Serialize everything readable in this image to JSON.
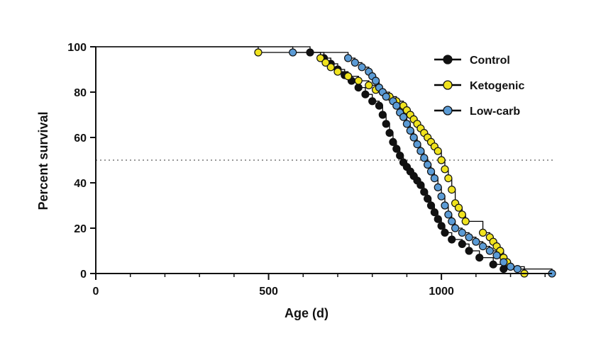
{
  "chart_data": {
    "type": "line",
    "subtype": "kaplan-meier-survival",
    "title": "",
    "xlabel": "Age (d)",
    "ylabel": "Percent survival",
    "xlim": [
      0,
      1320
    ],
    "ylim": [
      0,
      100
    ],
    "x_ticks": [
      0,
      500,
      1000
    ],
    "y_ticks": [
      0,
      20,
      40,
      60,
      80,
      100
    ],
    "x_minor_step": 100,
    "reference_line": {
      "y": 50,
      "style": "dotted",
      "color": "#999999"
    },
    "grid": false,
    "legend_position": "top-right",
    "series": [
      {
        "name": "Control",
        "color": "#000000",
        "marker_fill": "#111111",
        "steps": [
          [
            0,
            100
          ],
          [
            620,
            97.5
          ],
          [
            660,
            95
          ],
          [
            680,
            92.5
          ],
          [
            700,
            90
          ],
          [
            720,
            87.5
          ],
          [
            740,
            85
          ],
          [
            760,
            82
          ],
          [
            780,
            79
          ],
          [
            800,
            76
          ],
          [
            820,
            74
          ],
          [
            830,
            70
          ],
          [
            840,
            66
          ],
          [
            850,
            62
          ],
          [
            860,
            58
          ],
          [
            870,
            55
          ],
          [
            880,
            52
          ],
          [
            890,
            49
          ],
          [
            900,
            47
          ],
          [
            910,
            45
          ],
          [
            920,
            43
          ],
          [
            930,
            41
          ],
          [
            940,
            39
          ],
          [
            950,
            36
          ],
          [
            960,
            33
          ],
          [
            970,
            30
          ],
          [
            980,
            27
          ],
          [
            990,
            24
          ],
          [
            1000,
            21
          ],
          [
            1010,
            18
          ],
          [
            1030,
            15
          ],
          [
            1060,
            13
          ],
          [
            1080,
            10
          ],
          [
            1110,
            7
          ],
          [
            1150,
            4
          ],
          [
            1180,
            2
          ],
          [
            1240,
            0
          ]
        ],
        "points": [
          [
            620,
            97.5
          ],
          [
            660,
            95
          ],
          [
            680,
            92.5
          ],
          [
            700,
            90
          ],
          [
            720,
            87.5
          ],
          [
            740,
            85
          ],
          [
            760,
            82
          ],
          [
            780,
            79
          ],
          [
            800,
            76
          ],
          [
            820,
            74
          ],
          [
            830,
            70
          ],
          [
            840,
            66
          ],
          [
            850,
            62
          ],
          [
            860,
            58
          ],
          [
            870,
            55
          ],
          [
            880,
            52
          ],
          [
            890,
            49
          ],
          [
            900,
            47
          ],
          [
            910,
            45
          ],
          [
            920,
            43
          ],
          [
            930,
            41
          ],
          [
            940,
            39
          ],
          [
            950,
            36
          ],
          [
            960,
            33
          ],
          [
            970,
            30
          ],
          [
            980,
            27
          ],
          [
            990,
            24
          ],
          [
            1000,
            21
          ],
          [
            1010,
            18
          ],
          [
            1030,
            15
          ],
          [
            1060,
            13
          ],
          [
            1080,
            10
          ],
          [
            1110,
            7
          ],
          [
            1150,
            4
          ],
          [
            1180,
            2
          ]
        ]
      },
      {
        "name": "Ketogenic",
        "color": "#000000",
        "marker_fill": "#f0e31e",
        "steps": [
          [
            0,
            100
          ],
          [
            470,
            97.5
          ],
          [
            650,
            95
          ],
          [
            665,
            93
          ],
          [
            680,
            91
          ],
          [
            700,
            89
          ],
          [
            730,
            87
          ],
          [
            760,
            85
          ],
          [
            790,
            83
          ],
          [
            810,
            81
          ],
          [
            830,
            80
          ],
          [
            850,
            78
          ],
          [
            870,
            76
          ],
          [
            890,
            74
          ],
          [
            900,
            72
          ],
          [
            910,
            70
          ],
          [
            920,
            68
          ],
          [
            930,
            66
          ],
          [
            940,
            64
          ],
          [
            950,
            62
          ],
          [
            960,
            60
          ],
          [
            970,
            58
          ],
          [
            980,
            56
          ],
          [
            990,
            54
          ],
          [
            1000,
            50
          ],
          [
            1010,
            46
          ],
          [
            1020,
            42
          ],
          [
            1030,
            37
          ],
          [
            1040,
            31
          ],
          [
            1050,
            29
          ],
          [
            1060,
            26
          ],
          [
            1070,
            23
          ],
          [
            1120,
            18
          ],
          [
            1140,
            16
          ],
          [
            1150,
            14
          ],
          [
            1160,
            12
          ],
          [
            1170,
            10
          ],
          [
            1180,
            7
          ],
          [
            1190,
            5
          ],
          [
            1200,
            3
          ],
          [
            1240,
            0
          ]
        ],
        "points": [
          [
            470,
            97.5
          ],
          [
            650,
            95
          ],
          [
            665,
            93
          ],
          [
            680,
            91
          ],
          [
            700,
            89
          ],
          [
            730,
            87
          ],
          [
            760,
            85
          ],
          [
            790,
            83
          ],
          [
            810,
            81
          ],
          [
            830,
            80
          ],
          [
            850,
            78
          ],
          [
            870,
            76
          ],
          [
            890,
            74
          ],
          [
            900,
            72
          ],
          [
            910,
            70
          ],
          [
            920,
            68
          ],
          [
            930,
            66
          ],
          [
            940,
            64
          ],
          [
            950,
            62
          ],
          [
            960,
            60
          ],
          [
            970,
            58
          ],
          [
            980,
            56
          ],
          [
            990,
            54
          ],
          [
            1000,
            50
          ],
          [
            1010,
            46
          ],
          [
            1020,
            42
          ],
          [
            1030,
            37
          ],
          [
            1040,
            31
          ],
          [
            1050,
            29
          ],
          [
            1060,
            26
          ],
          [
            1070,
            23
          ],
          [
            1120,
            18
          ],
          [
            1140,
            16
          ],
          [
            1150,
            14
          ],
          [
            1160,
            12
          ],
          [
            1170,
            10
          ],
          [
            1180,
            7
          ],
          [
            1190,
            5
          ],
          [
            1200,
            3
          ],
          [
            1240,
            0
          ]
        ]
      },
      {
        "name": "Low-carb",
        "color": "#000000",
        "marker_fill": "#5b9bd5",
        "steps": [
          [
            0,
            100
          ],
          [
            570,
            97.5
          ],
          [
            730,
            95
          ],
          [
            750,
            93
          ],
          [
            770,
            91
          ],
          [
            790,
            89
          ],
          [
            800,
            87
          ],
          [
            810,
            85
          ],
          [
            820,
            82
          ],
          [
            830,
            80
          ],
          [
            840,
            78
          ],
          [
            860,
            76
          ],
          [
            870,
            74
          ],
          [
            880,
            71
          ],
          [
            890,
            69
          ],
          [
            900,
            66
          ],
          [
            910,
            63
          ],
          [
            920,
            60
          ],
          [
            930,
            57
          ],
          [
            940,
            54
          ],
          [
            950,
            51
          ],
          [
            960,
            48
          ],
          [
            970,
            45
          ],
          [
            980,
            42
          ],
          [
            990,
            38
          ],
          [
            1000,
            34
          ],
          [
            1010,
            30
          ],
          [
            1020,
            26
          ],
          [
            1030,
            23
          ],
          [
            1040,
            20
          ],
          [
            1060,
            18
          ],
          [
            1080,
            16
          ],
          [
            1100,
            14
          ],
          [
            1120,
            12
          ],
          [
            1140,
            10
          ],
          [
            1160,
            8
          ],
          [
            1180,
            5
          ],
          [
            1200,
            3
          ],
          [
            1220,
            2
          ],
          [
            1320,
            0
          ]
        ],
        "points": [
          [
            570,
            97.5
          ],
          [
            730,
            95
          ],
          [
            750,
            93
          ],
          [
            770,
            91
          ],
          [
            790,
            89
          ],
          [
            800,
            87
          ],
          [
            810,
            85
          ],
          [
            820,
            82
          ],
          [
            830,
            80
          ],
          [
            840,
            78
          ],
          [
            860,
            76
          ],
          [
            870,
            74
          ],
          [
            880,
            71
          ],
          [
            890,
            69
          ],
          [
            900,
            66
          ],
          [
            910,
            63
          ],
          [
            920,
            60
          ],
          [
            930,
            57
          ],
          [
            940,
            54
          ],
          [
            950,
            51
          ],
          [
            960,
            48
          ],
          [
            970,
            45
          ],
          [
            980,
            42
          ],
          [
            990,
            38
          ],
          [
            1000,
            34
          ],
          [
            1010,
            30
          ],
          [
            1020,
            26
          ],
          [
            1030,
            23
          ],
          [
            1040,
            20
          ],
          [
            1060,
            18
          ],
          [
            1080,
            16
          ],
          [
            1100,
            14
          ],
          [
            1120,
            12
          ],
          [
            1140,
            10
          ],
          [
            1160,
            8
          ],
          [
            1180,
            5
          ],
          [
            1200,
            3
          ],
          [
            1220,
            2
          ],
          [
            1320,
            0
          ]
        ]
      }
    ]
  }
}
